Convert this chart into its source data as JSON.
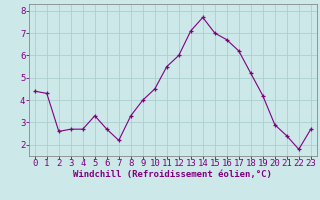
{
  "x": [
    0,
    1,
    2,
    3,
    4,
    5,
    6,
    7,
    8,
    9,
    10,
    11,
    12,
    13,
    14,
    15,
    16,
    17,
    18,
    19,
    20,
    21,
    22,
    23
  ],
  "y": [
    4.4,
    4.3,
    2.6,
    2.7,
    2.7,
    3.3,
    2.7,
    2.2,
    3.3,
    4.0,
    4.5,
    5.5,
    6.0,
    7.1,
    7.7,
    7.0,
    6.7,
    6.2,
    5.2,
    4.2,
    2.9,
    2.4,
    1.8,
    2.7
  ],
  "line_color": "#800080",
  "marker": "+",
  "marker_color": "#800080",
  "xlabel": "Windchill (Refroidissement éolien,°C)",
  "xlabel_color": "#800080",
  "background_color": "#cce8e8",
  "grid_color": "#aacfcf",
  "axis_color": "#888888",
  "tick_color": "#800080",
  "ylim": [
    1.5,
    8.3
  ],
  "xlim": [
    -0.5,
    23.5
  ],
  "yticks": [
    2,
    3,
    4,
    5,
    6,
    7,
    8
  ],
  "xticks": [
    0,
    1,
    2,
    3,
    4,
    5,
    6,
    7,
    8,
    9,
    10,
    11,
    12,
    13,
    14,
    15,
    16,
    17,
    18,
    19,
    20,
    21,
    22,
    23
  ],
  "xlabel_fontsize": 6.5,
  "tick_fontsize": 6.5
}
